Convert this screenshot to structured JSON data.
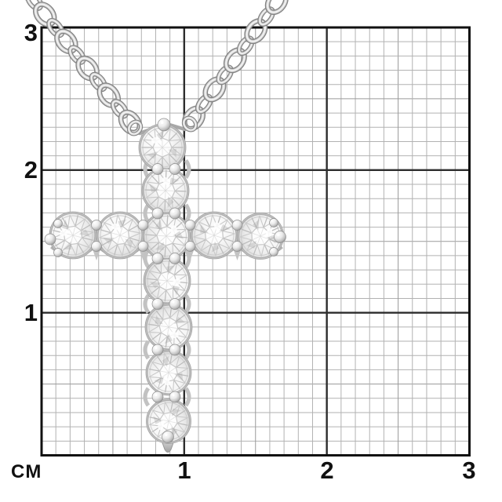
{
  "image": {
    "type": "product-photo-on-size-grid",
    "subject": "diamond cross pendant necklace on cable-link chain over centimeter grid"
  },
  "ruler": {
    "unit": "CM",
    "x_labels": [
      "1",
      "2",
      "3"
    ],
    "y_labels": [
      "1",
      "2",
      "3"
    ],
    "range_cm": 3,
    "minor_divisions_per_cm": 10
  },
  "pendant": {
    "stone_count": 11,
    "column_stone_count": 7,
    "arm_stone_count": 5,
    "shared_center_stone": true,
    "chain_type": "cable-link",
    "metal_tone": "white-silver"
  },
  "colors": {
    "background": "#ffffff",
    "grid_minor": "#b2b2b2",
    "grid_half": "#9a9a9a",
    "grid_major": "#2d2d2d",
    "grid_border": "#101010",
    "label": "#111111",
    "metal_dark": "#838383",
    "metal_mid": "#cfcfcf",
    "metal_light": "#f3f3f3",
    "stone_edge": "#b0b0b0",
    "facet_line": "#bdbdbd",
    "basket": "#c4c4c4"
  }
}
